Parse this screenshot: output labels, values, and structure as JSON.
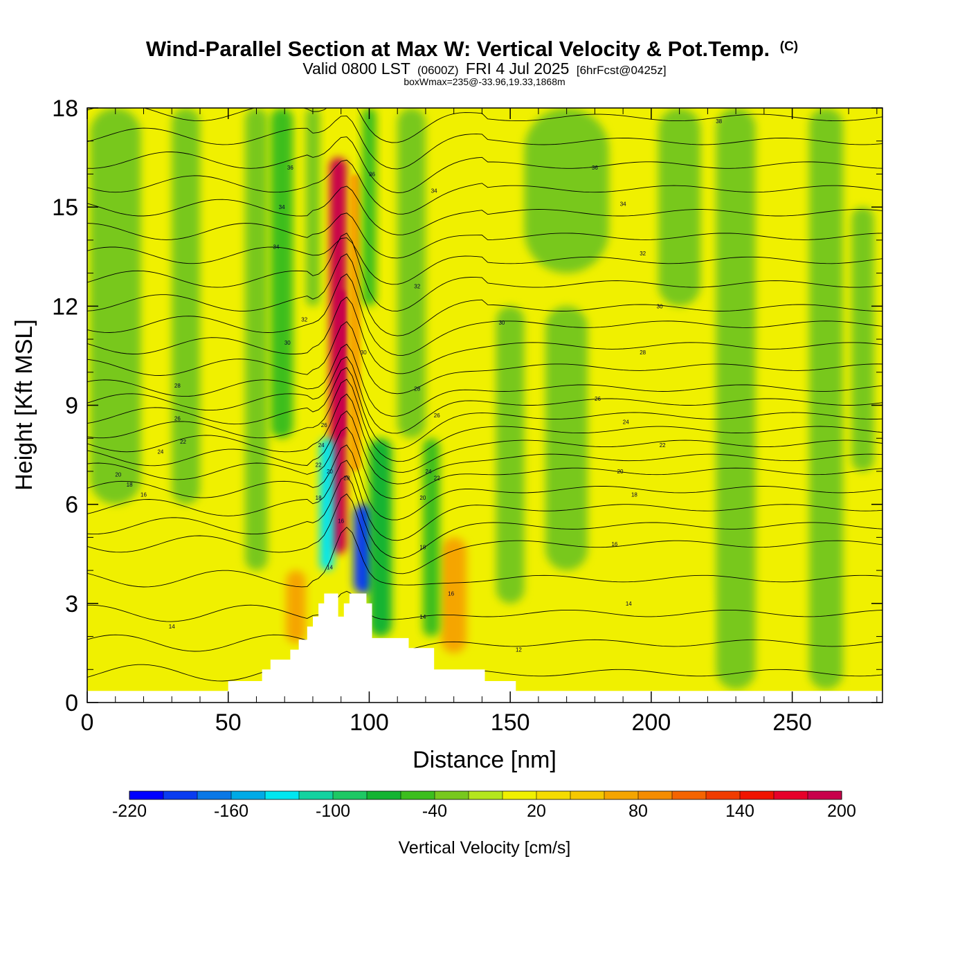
{
  "chart_data": {
    "type": "heatmap",
    "title": "Wind-Parallel Section at Max W: Vertical Velocity & Pot.Temp.",
    "title_mark": "(C)",
    "subtitle": {
      "part1": "Valid 0800 LST",
      "part2": "(0600Z)",
      "part3": "FRI 4 Jul 2025",
      "part4": "[6hrFcst@0425z]"
    },
    "subtitle2": "boxWmax=235@-33.96,19.33,1868m",
    "xlabel": "Distance [nm]",
    "ylabel": "Height [Kft MSL]",
    "xlim": [
      0,
      282
    ],
    "ylim": [
      0,
      18
    ],
    "x_ticks": [
      0,
      50,
      100,
      150,
      200,
      250
    ],
    "y_ticks": [
      0,
      3,
      6,
      9,
      12,
      15,
      18
    ],
    "colorbar": {
      "label": "Vertical Velocity [cm/s]",
      "tick_labels": [
        "-220",
        "-160",
        "-100",
        "-40",
        "20",
        "80",
        "140",
        "200"
      ],
      "colors": [
        "#0000ff",
        "#0a3cf0",
        "#0a78e6",
        "#00aae6",
        "#00e6f0",
        "#14d2a0",
        "#1ec864",
        "#14b432",
        "#3cbe1e",
        "#78c81e",
        "#b4e61e",
        "#f0f000",
        "#f5dc00",
        "#f5c800",
        "#f5a500",
        "#f58c00",
        "#f56400",
        "#f03c00",
        "#f01400",
        "#e6002a",
        "#c8004b"
      ]
    },
    "terrain_profile": [
      [
        0,
        0.35
      ],
      [
        50,
        0.35
      ],
      [
        50,
        0.65
      ],
      [
        62,
        0.65
      ],
      [
        62,
        1.0
      ],
      [
        65,
        1.0
      ],
      [
        65,
        1.3
      ],
      [
        72,
        1.3
      ],
      [
        72,
        1.6
      ],
      [
        75,
        1.6
      ],
      [
        75,
        1.9
      ],
      [
        78,
        1.9
      ],
      [
        78,
        2.3
      ],
      [
        80,
        2.3
      ],
      [
        80,
        2.6
      ],
      [
        82,
        2.6
      ],
      [
        82,
        3.0
      ],
      [
        84,
        3.0
      ],
      [
        84,
        3.3
      ],
      [
        89,
        3.3
      ],
      [
        89,
        2.6
      ],
      [
        91,
        2.6
      ],
      [
        91,
        3.0
      ],
      [
        93,
        3.0
      ],
      [
        93,
        3.3
      ],
      [
        99,
        3.3
      ],
      [
        99,
        3.0
      ],
      [
        101,
        3.0
      ],
      [
        101,
        1.95
      ],
      [
        114,
        1.95
      ],
      [
        114,
        1.65
      ],
      [
        123,
        1.65
      ],
      [
        123,
        1.0
      ],
      [
        141,
        1.0
      ],
      [
        141,
        0.65
      ],
      [
        152,
        0.65
      ],
      [
        152,
        0.35
      ],
      [
        282,
        0.35
      ]
    ],
    "velocity_features": [
      {
        "x": 89,
        "y0": 4.5,
        "y1": 16.5,
        "width": 6,
        "value": 200
      },
      {
        "x": 90,
        "y0": 8,
        "y1": 12.5,
        "width": 3,
        "value": 235
      },
      {
        "x": 95,
        "y0": 7,
        "y1": 16,
        "width": 4,
        "value": 60
      },
      {
        "x": 85,
        "y0": 4,
        "y1": 8,
        "width": 5,
        "value": -140
      },
      {
        "x": 98,
        "y0": 3.3,
        "y1": 6,
        "width": 7,
        "value": -200
      },
      {
        "x": 104,
        "y0": 2,
        "y1": 8,
        "width": 8,
        "value": -80
      },
      {
        "x": 74,
        "y0": 1.8,
        "y1": 4,
        "width": 7,
        "value": 70
      },
      {
        "x": 130,
        "y0": 1.5,
        "y1": 5,
        "width": 9,
        "value": 70
      },
      {
        "x": 122,
        "y0": 2,
        "y1": 8,
        "width": 6,
        "value": -60
      },
      {
        "x": 60,
        "y0": 4,
        "y1": 18,
        "width": 8,
        "value": -30
      },
      {
        "x": 69,
        "y0": 8,
        "y1": 18,
        "width": 8,
        "value": -50
      },
      {
        "x": 80,
        "y0": 12,
        "y1": 18,
        "width": 5,
        "value": -40
      },
      {
        "x": 100,
        "y0": 12,
        "y1": 18,
        "width": 5,
        "value": -50
      },
      {
        "x": 115,
        "y0": 8,
        "y1": 18,
        "width": 10,
        "value": -30
      },
      {
        "x": 150,
        "y0": 3,
        "y1": 12,
        "width": 10,
        "value": -30
      },
      {
        "x": 170,
        "y0": 4,
        "y1": 12,
        "width": 15,
        "value": -30
      },
      {
        "x": 230,
        "y0": 0.4,
        "y1": 18,
        "width": 14,
        "value": -30
      },
      {
        "x": 262,
        "y0": 0.4,
        "y1": 18,
        "width": 12,
        "value": -30
      },
      {
        "x": 10,
        "y0": 6,
        "y1": 18,
        "width": 18,
        "value": -25
      },
      {
        "x": 35,
        "y0": 6,
        "y1": 18,
        "width": 10,
        "value": -25
      },
      {
        "x": 170,
        "y0": 13,
        "y1": 18,
        "width": 30,
        "value": -25
      },
      {
        "x": 210,
        "y0": 12,
        "y1": 18,
        "width": 15,
        "value": -25
      },
      {
        "x": 275,
        "y0": 7,
        "y1": 15,
        "width": 8,
        "value": -25
      },
      {
        "x": 210,
        "y0": 1,
        "y1": 4,
        "width": 20,
        "value": 15
      },
      {
        "x": 20,
        "y0": 0.5,
        "y1": 5,
        "width": 25,
        "value": 15
      },
      {
        "x": 195,
        "y0": 5,
        "y1": 11,
        "width": 20,
        "value": 15
      }
    ],
    "theta_contour_labels": [
      {
        "x": 30,
        "y": 2.3,
        "text": "14"
      },
      {
        "x": 20,
        "y": 6.3,
        "text": "16"
      },
      {
        "x": 15,
        "y": 6.6,
        "text": "18"
      },
      {
        "x": 11,
        "y": 6.9,
        "text": "20"
      },
      {
        "x": 26,
        "y": 7.6,
        "text": "24"
      },
      {
        "x": 34,
        "y": 7.9,
        "text": "22"
      },
      {
        "x": 32,
        "y": 8.6,
        "text": "26"
      },
      {
        "x": 32,
        "y": 9.6,
        "text": "28"
      },
      {
        "x": 71,
        "y": 10.9,
        "text": "30"
      },
      {
        "x": 77,
        "y": 11.6,
        "text": "32"
      },
      {
        "x": 67,
        "y": 13.8,
        "text": "34"
      },
      {
        "x": 69,
        "y": 15.0,
        "text": "34"
      },
      {
        "x": 72,
        "y": 16.2,
        "text": "36"
      },
      {
        "x": 101,
        "y": 16.0,
        "text": "36"
      },
      {
        "x": 123,
        "y": 15.5,
        "text": "34"
      },
      {
        "x": 224,
        "y": 17.6,
        "text": "38"
      },
      {
        "x": 180,
        "y": 16.2,
        "text": "36"
      },
      {
        "x": 190,
        "y": 15.1,
        "text": "34"
      },
      {
        "x": 197,
        "y": 13.6,
        "text": "32"
      },
      {
        "x": 203,
        "y": 12.0,
        "text": "30"
      },
      {
        "x": 197,
        "y": 10.6,
        "text": "28"
      },
      {
        "x": 181,
        "y": 9.2,
        "text": "26"
      },
      {
        "x": 191,
        "y": 8.5,
        "text": "24"
      },
      {
        "x": 204,
        "y": 7.8,
        "text": "22"
      },
      {
        "x": 189,
        "y": 7.0,
        "text": "20"
      },
      {
        "x": 194,
        "y": 6.3,
        "text": "18"
      },
      {
        "x": 187,
        "y": 4.8,
        "text": "16"
      },
      {
        "x": 192,
        "y": 3.0,
        "text": "14"
      },
      {
        "x": 153,
        "y": 1.6,
        "text": "12"
      },
      {
        "x": 117,
        "y": 12.6,
        "text": "32"
      },
      {
        "x": 117,
        "y": 9.5,
        "text": "28"
      },
      {
        "x": 124,
        "y": 8.7,
        "text": "26"
      },
      {
        "x": 121,
        "y": 7.0,
        "text": "24"
      },
      {
        "x": 124,
        "y": 6.8,
        "text": "22"
      },
      {
        "x": 119,
        "y": 6.2,
        "text": "20"
      },
      {
        "x": 119,
        "y": 4.7,
        "text": "18"
      },
      {
        "x": 129,
        "y": 3.3,
        "text": "16"
      },
      {
        "x": 119,
        "y": 2.6,
        "text": "14"
      },
      {
        "x": 98,
        "y": 10.6,
        "text": "30"
      },
      {
        "x": 84,
        "y": 8.4,
        "text": "26"
      },
      {
        "x": 83,
        "y": 7.8,
        "text": "24"
      },
      {
        "x": 82,
        "y": 7.2,
        "text": "22"
      },
      {
        "x": 86,
        "y": 7.0,
        "text": "20"
      },
      {
        "x": 82,
        "y": 6.2,
        "text": "18"
      },
      {
        "x": 90,
        "y": 5.5,
        "text": "16"
      },
      {
        "x": 86,
        "y": 4.1,
        "text": "14"
      },
      {
        "x": 92,
        "y": 6.8,
        "text": "28"
      },
      {
        "x": 147,
        "y": 11.5,
        "text": "30"
      }
    ],
    "grid": false,
    "legend": "bottom"
  }
}
